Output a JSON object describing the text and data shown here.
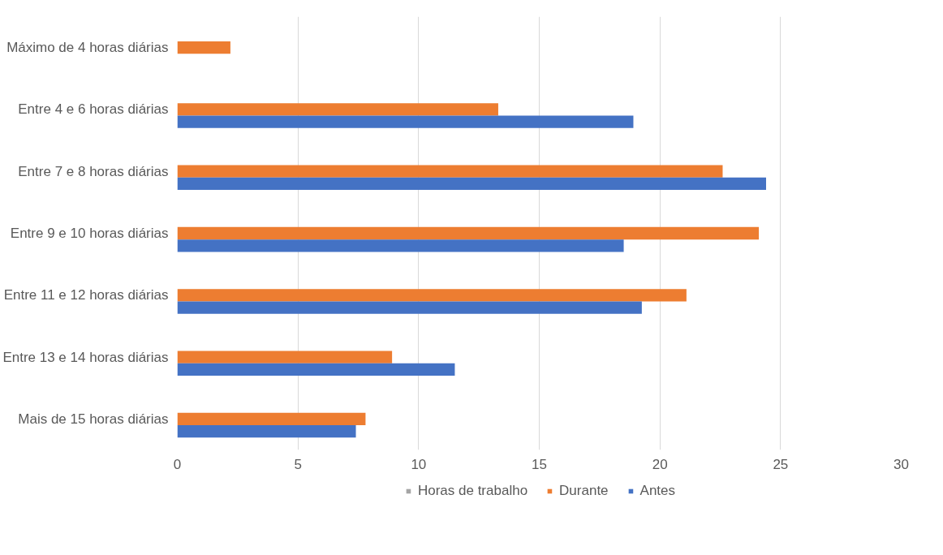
{
  "chart_data": {
    "type": "bar",
    "orientation": "horizontal",
    "categories": [
      "Máximo de 4 horas diárias",
      "Entre 4 e 6 horas diárias",
      "Entre 7 e 8 horas diárias",
      "Entre 9 e 10 horas diárias",
      "Entre 11 e 12 horas diárias",
      "Entre 13 e 14 horas diárias",
      "Mais de 15 horas diárias"
    ],
    "series": [
      {
        "name": "Horas de trabalho",
        "color": "#a5a5a5",
        "values": [
          null,
          null,
          null,
          null,
          null,
          null,
          null
        ]
      },
      {
        "name": "Durante",
        "color": "#ed7d31",
        "values": [
          2.2,
          13.3,
          22.6,
          24.1,
          21.1,
          8.9,
          7.8
        ]
      },
      {
        "name": "Antes",
        "color": "#4472c4",
        "values": [
          null,
          18.9,
          24.4,
          18.5,
          19.25,
          11.5,
          7.4
        ]
      }
    ],
    "xlim": [
      0,
      30
    ],
    "xticks": [
      0,
      5,
      10,
      15,
      20,
      25,
      30
    ],
    "grid": "x",
    "legend": "bottom"
  }
}
